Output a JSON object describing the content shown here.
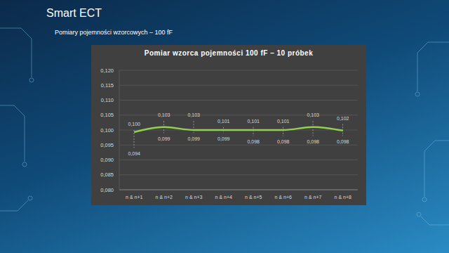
{
  "header": {
    "title": "Smart ECT",
    "subtitle": "Pomiary pojemności wzorcowych – 100 fF"
  },
  "chart_data": {
    "type": "line",
    "title": "Pomiar wzorca pojemności 100 fF – 10 próbek",
    "categories": [
      "n & n+1",
      "n & n+2",
      "n & n+3",
      "n & n+4",
      "n & n+5",
      "n & n+6",
      "n & n+7",
      "n & n+8"
    ],
    "series": [
      {
        "type": "line",
        "color": "#92d050",
        "marker": "none",
        "line_style": "solid",
        "values": [
          0.0993,
          0.101,
          0.1,
          0.1,
          0.1,
          0.1,
          0.101,
          0.0998
        ]
      },
      {
        "type": "label",
        "color": "#d9d9d9",
        "line_style": "dashed",
        "data_labels": true,
        "values": [
          0.1,
          0.103,
          0.103,
          0.101,
          0.101,
          0.101,
          0.103,
          0.102
        ],
        "value_labels": [
          "0,100",
          "0,103",
          "0,103",
          "0,101",
          "0,101",
          "0,101",
          "0,103",
          "0,102"
        ]
      },
      {
        "type": "label",
        "color": "#d9d9d9",
        "line_style": "dashed",
        "data_labels": true,
        "values": [
          0.094,
          0.099,
          0.099,
          0.099,
          0.098,
          0.098,
          0.098,
          0.098
        ],
        "value_labels": [
          "0,094",
          "0,099",
          "0,099",
          "0,099",
          "0,098",
          "0,098",
          "0,098",
          "0,098"
        ]
      }
    ],
    "ylim": [
      0.08,
      0.12
    ],
    "yticks": [
      {
        "value": 0.08,
        "label": "0,080"
      },
      {
        "value": 0.085,
        "label": "0,085"
      },
      {
        "value": 0.09,
        "label": "0,090"
      },
      {
        "value": 0.095,
        "label": "0,095"
      },
      {
        "value": 0.1,
        "label": "0,100"
      },
      {
        "value": 0.105,
        "label": "0,105"
      },
      {
        "value": 0.11,
        "label": "0,110"
      },
      {
        "value": 0.115,
        "label": "0,115"
      },
      {
        "value": 0.12,
        "label": "0,120"
      }
    ],
    "grid": true
  }
}
